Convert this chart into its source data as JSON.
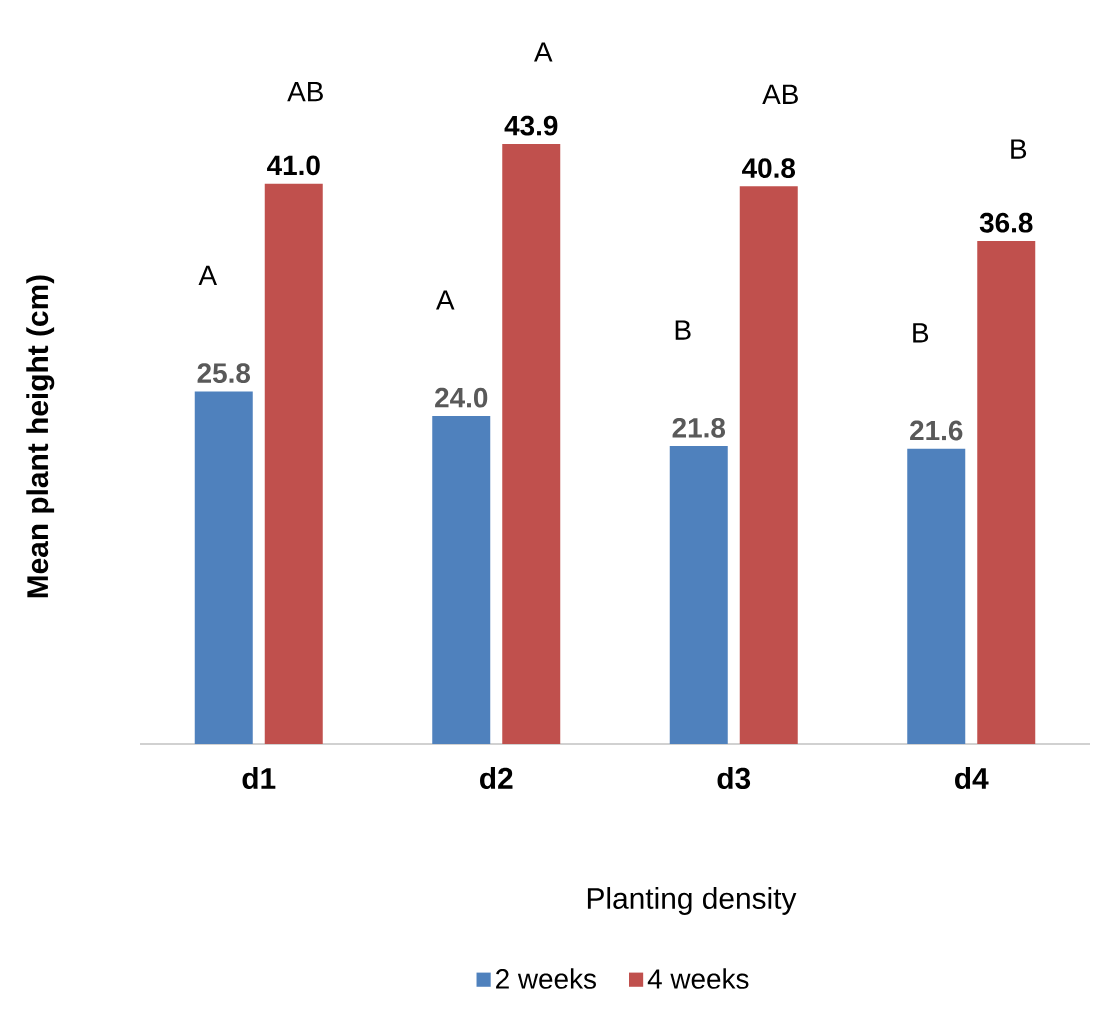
{
  "chart_data": {
    "type": "bar",
    "xlabel": "Planting density",
    "ylabel": "Mean plant height (cm)",
    "categories": [
      "d1",
      "d2",
      "d3",
      "d4"
    ],
    "series": [
      {
        "name": "2 weeks",
        "color": "#4f81bd",
        "values": [
          25.8,
          24.0,
          21.8,
          21.6
        ],
        "value_labels": [
          "25.8",
          "24.0",
          "21.8",
          "21.6"
        ]
      },
      {
        "name": "4 weeks",
        "color": "#c0504d",
        "values": [
          41.0,
          43.9,
          40.8,
          36.8
        ],
        "value_labels": [
          "41.0",
          "43.9",
          "40.8",
          "36.8"
        ]
      }
    ],
    "annotations": [
      "A",
      "AB",
      "A",
      "A",
      "B",
      "AB",
      "B",
      "B"
    ],
    "legend": "bottom",
    "grid": false
  }
}
